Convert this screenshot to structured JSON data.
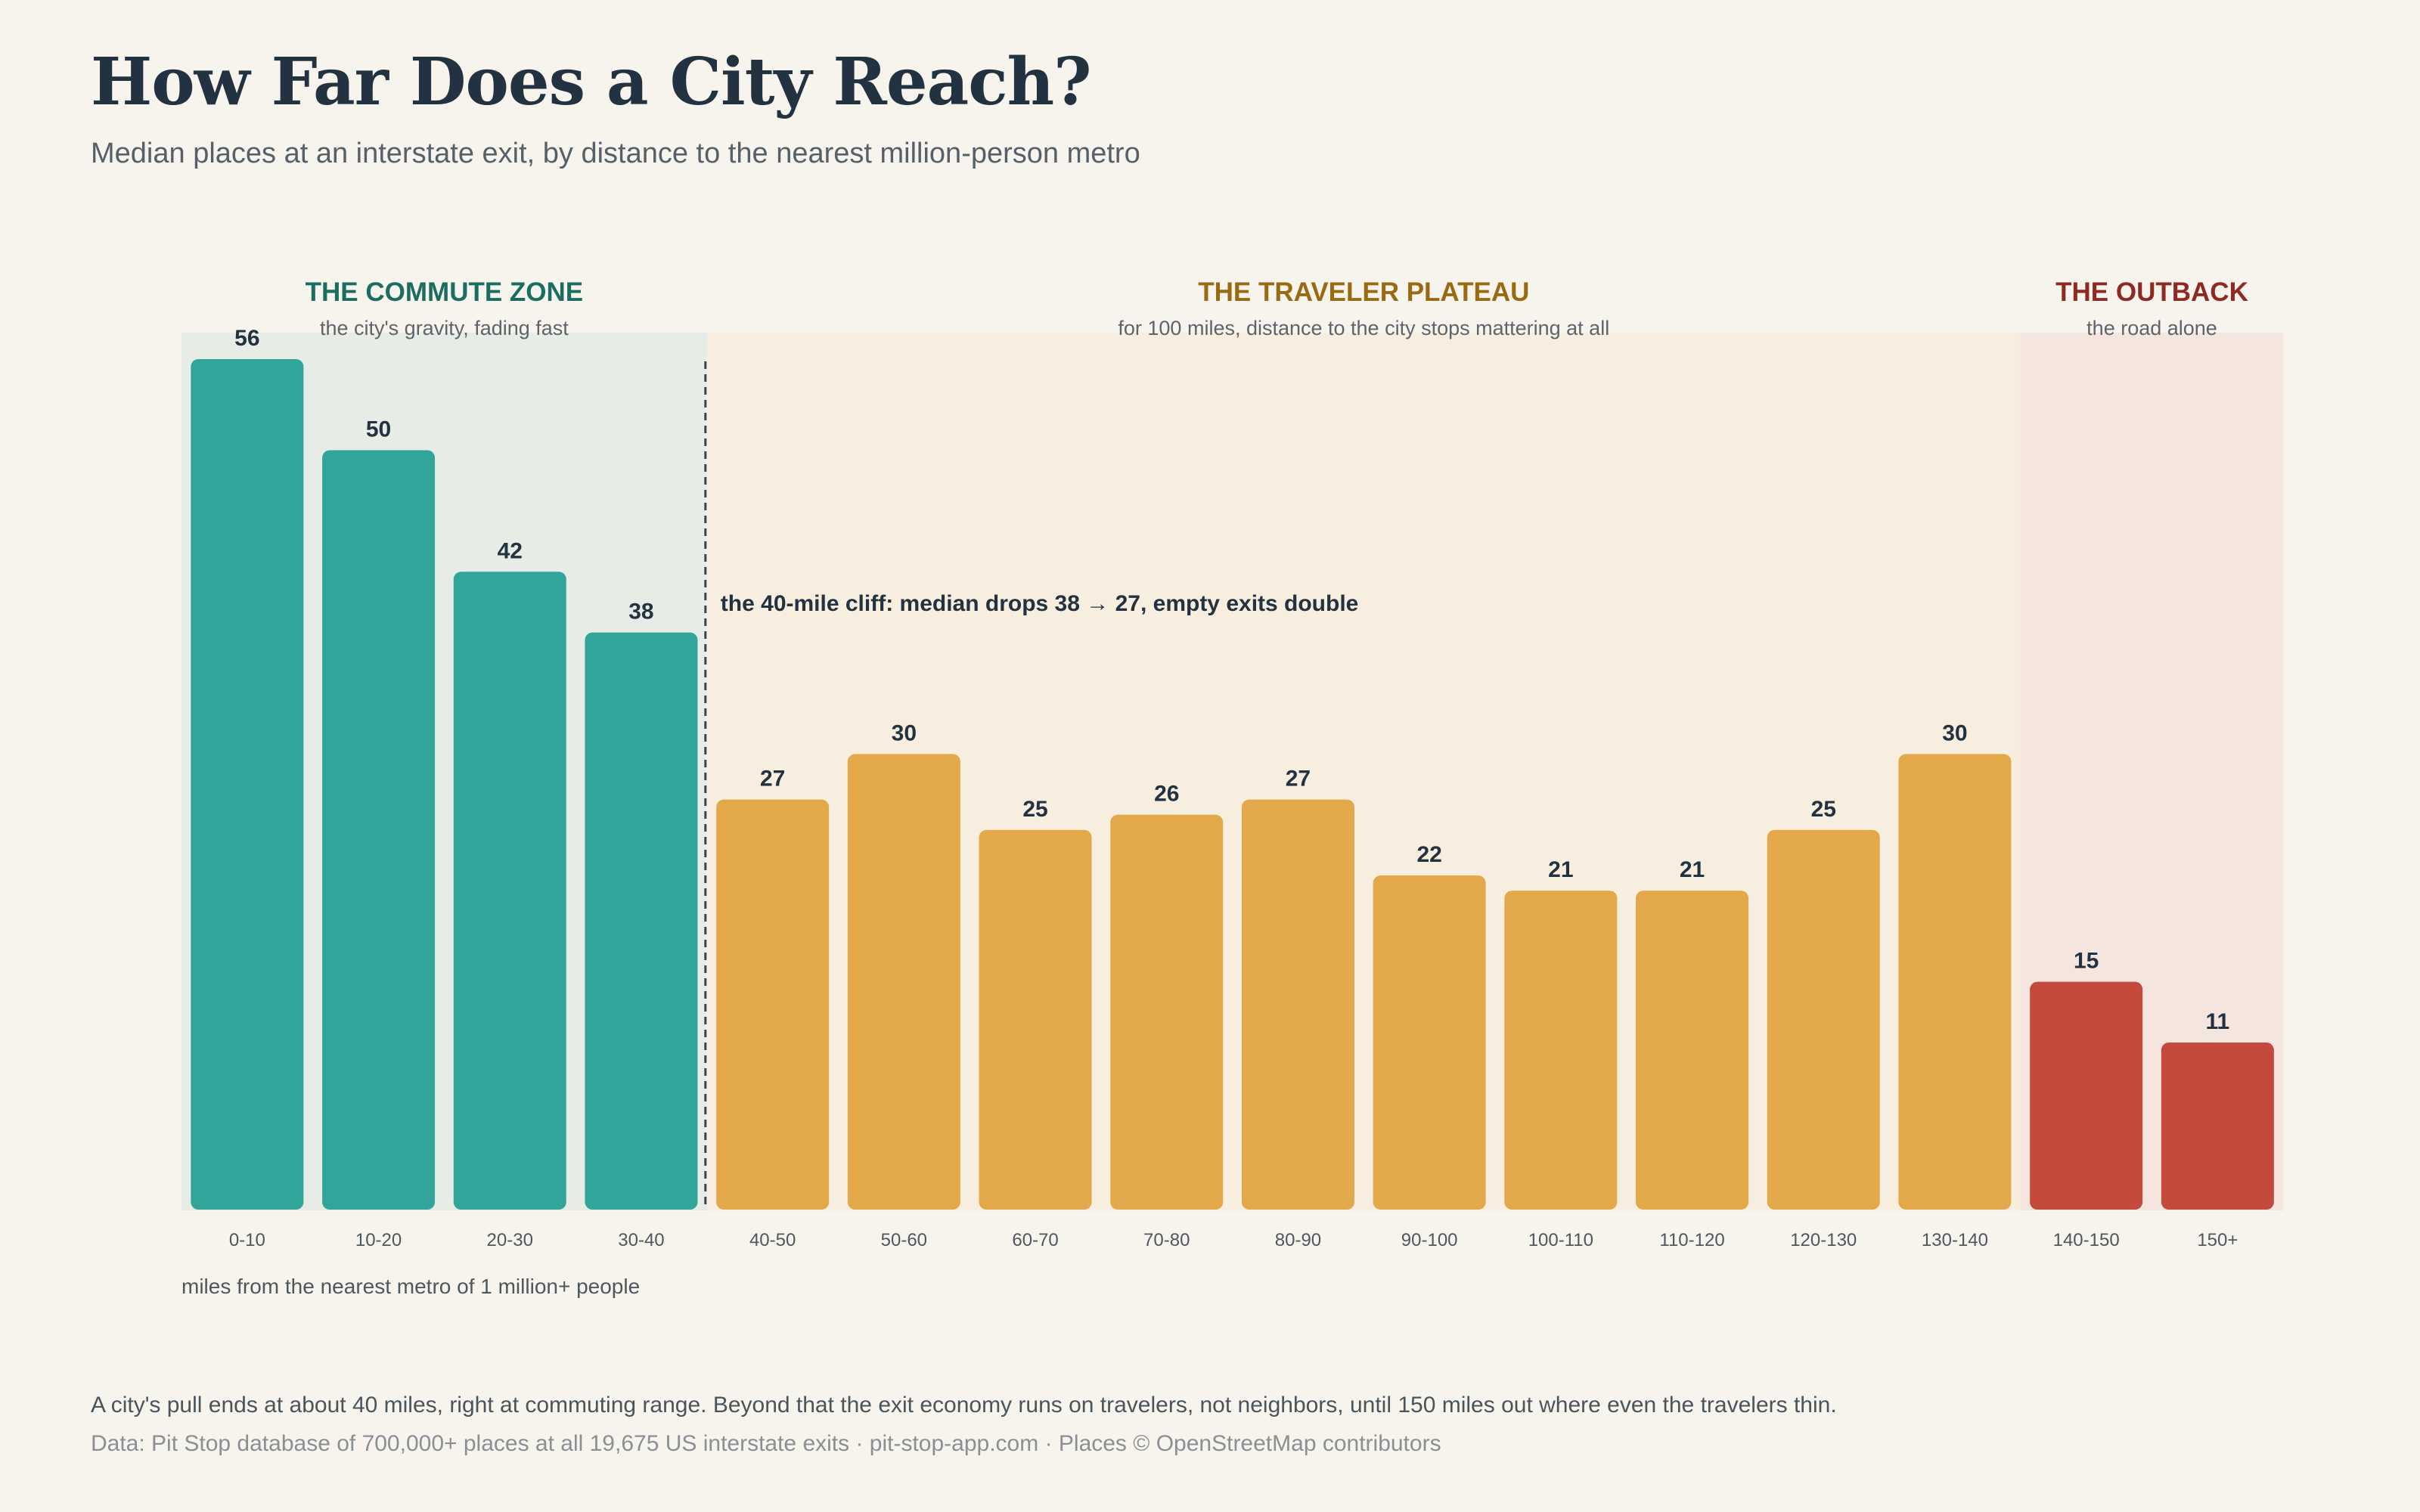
{
  "title": "How Far Does a City Reach?",
  "subtitle": "Median places at an interstate exit, by distance to the nearest million-person metro",
  "caption": "A city's pull ends at about 40 miles, right at commuting range. Beyond that the exit economy runs on travelers, not neighbors, until 150 miles out where even the travelers thin.",
  "source": "Data: Pit Stop database of 700,000+ places at all 19,675 US interstate exits · pit-stop-app.com · Places © OpenStreetMap contributors",
  "chart_data": {
    "type": "bar",
    "xlabel": "miles from the nearest metro of 1 million+ people",
    "ylabel": "",
    "ylim": [
      0,
      60
    ],
    "grid": false,
    "categories": [
      "0-10",
      "10-20",
      "20-30",
      "30-40",
      "40-50",
      "50-60",
      "60-70",
      "70-80",
      "80-90",
      "90-100",
      "100-110",
      "110-120",
      "120-130",
      "130-140",
      "140-150",
      "150+"
    ],
    "values": [
      56,
      50,
      42,
      38,
      27,
      30,
      25,
      26,
      27,
      22,
      21,
      21,
      25,
      30,
      15,
      11
    ],
    "zones": [
      {
        "title": "THE COMMUTE ZONE",
        "subtitle": "the city's gravity, fading fast",
        "start": 0,
        "end": 3,
        "bar_color": "#31a599",
        "bg_color": "#e8ece6",
        "title_color": "#1b6e5f"
      },
      {
        "title": "THE TRAVELER PLATEAU",
        "subtitle": "for 100 miles, distance to the city stops mattering at all",
        "start": 4,
        "end": 13,
        "bar_color": "#e3a84a",
        "bg_color": "#f7eedf",
        "title_color": "#9a6a12"
      },
      {
        "title": "THE OUTBACK",
        "subtitle": "the road alone",
        "start": 14,
        "end": 15,
        "bar_color": "#c54a3e",
        "bg_color": "#f4e6df",
        "title_color": "#8f2a22"
      }
    ],
    "annotation": {
      "text": "the 40-mile cliff: median drops 38 → 27, empty exits double",
      "after_category": "30-40"
    }
  }
}
